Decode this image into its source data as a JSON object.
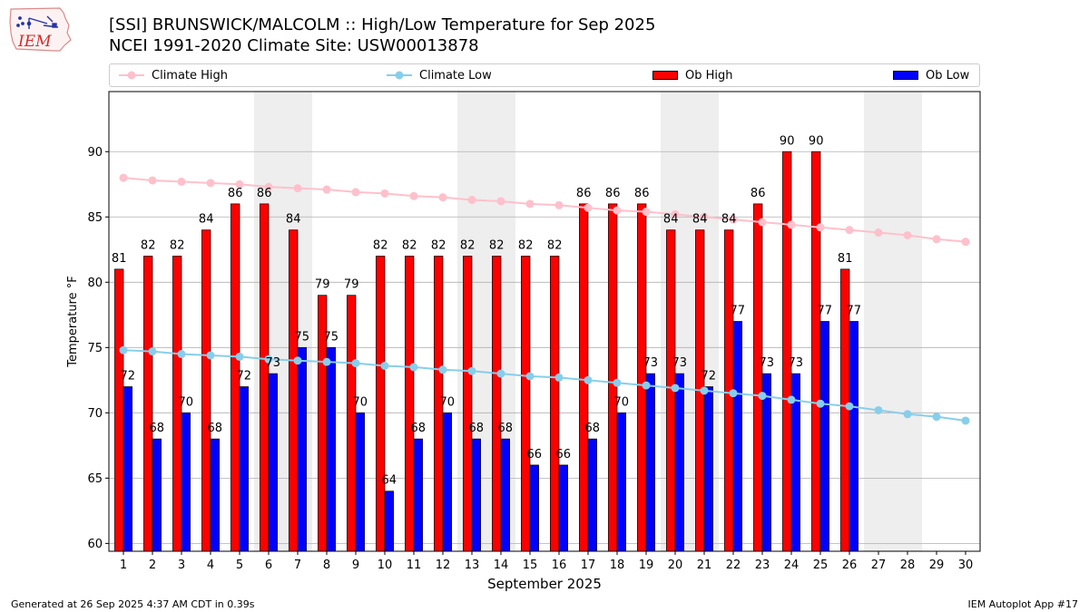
{
  "header": {
    "title_line1": "[SSI] BRUNSWICK/MALCOLM :: High/Low Temperature for Sep 2025",
    "title_line2": "NCEI 1991-2020 Climate Site: USW00013878",
    "logo_text": "IEM"
  },
  "footer": {
    "generated": "Generated at 26 Sep 2025 4:37 AM CDT in 0.39s",
    "app": "IEM Autoplot App #17"
  },
  "colors": {
    "climate_high": "#ffc0cb",
    "climate_low": "#87ceeb",
    "ob_high": "#ff0000",
    "ob_low": "#0000ff",
    "weekend_shade": "#eeeeee",
    "grid": "#b0b0b0"
  },
  "chart_data": {
    "type": "bar",
    "xlabel": "September 2025",
    "ylabel": "Temperature °F",
    "ylim": [
      59.4,
      94.6
    ],
    "xlim": [
      0.5,
      30.5
    ],
    "yticks": [
      60,
      65,
      70,
      75,
      80,
      85,
      90
    ],
    "grid": true,
    "legend_position": "top",
    "categories": [
      "1",
      "2",
      "3",
      "4",
      "5",
      "6",
      "7",
      "8",
      "9",
      "10",
      "11",
      "12",
      "13",
      "14",
      "15",
      "16",
      "17",
      "18",
      "19",
      "20",
      "21",
      "22",
      "23",
      "24",
      "25",
      "26",
      "27",
      "28",
      "29",
      "30"
    ],
    "weekend_bands": [
      [
        6,
        7
      ],
      [
        13,
        14
      ],
      [
        20,
        21
      ],
      [
        27,
        28
      ]
    ],
    "series": [
      {
        "name": "Climate High",
        "kind": "line",
        "values": [
          88.0,
          87.8,
          87.7,
          87.6,
          87.5,
          87.3,
          87.2,
          87.1,
          86.9,
          86.8,
          86.6,
          86.5,
          86.3,
          86.2,
          86.0,
          85.9,
          85.7,
          85.5,
          85.4,
          85.2,
          85.0,
          84.8,
          84.6,
          84.4,
          84.2,
          84.0,
          83.8,
          83.6,
          83.3,
          83.1
        ]
      },
      {
        "name": "Climate Low",
        "kind": "line",
        "values": [
          74.8,
          74.7,
          74.5,
          74.4,
          74.3,
          74.1,
          74.0,
          73.9,
          73.8,
          73.6,
          73.5,
          73.3,
          73.2,
          73.0,
          72.8,
          72.7,
          72.5,
          72.3,
          72.1,
          71.9,
          71.7,
          71.5,
          71.3,
          71.0,
          70.7,
          70.5,
          70.2,
          69.9,
          69.7,
          69.4
        ]
      },
      {
        "name": "Ob High",
        "kind": "bar",
        "values": [
          81,
          82,
          82,
          84,
          86,
          86,
          84,
          79,
          79,
          82,
          82,
          82,
          82,
          82,
          82,
          82,
          86,
          86,
          86,
          84,
          84,
          84,
          86,
          90,
          90,
          81,
          null,
          null,
          null,
          null
        ]
      },
      {
        "name": "Ob Low",
        "kind": "bar",
        "values": [
          72,
          68,
          70,
          68,
          72,
          73,
          75,
          75,
          70,
          64,
          68,
          70,
          68,
          68,
          66,
          66,
          68,
          70,
          73,
          73,
          72,
          77,
          73,
          73,
          77,
          77,
          null,
          null,
          null,
          null
        ]
      }
    ]
  }
}
